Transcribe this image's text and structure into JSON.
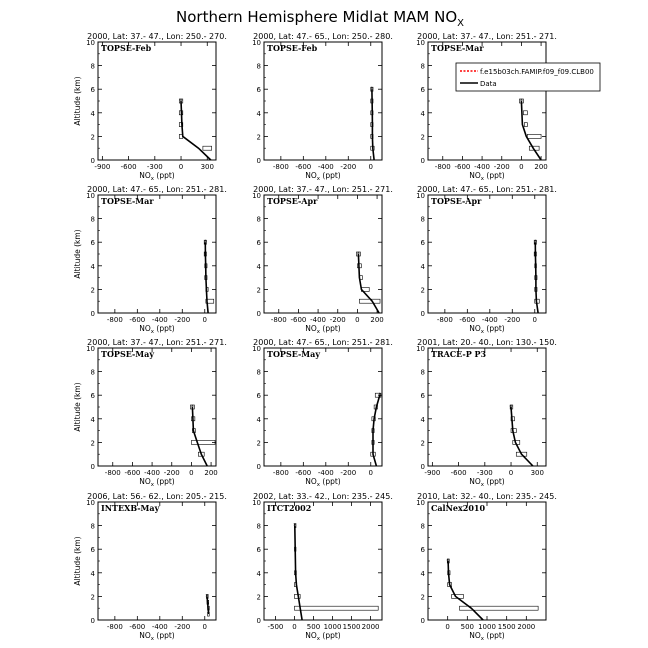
{
  "figure": {
    "title": "Northern Hemisphere Midlat MAM NO",
    "title_sub": "X",
    "xlabel_main": "NO",
    "xlabel_sub": "x",
    "xlabel_unit": "(ppt)",
    "ylabel": "Altitude (km)"
  },
  "legend": {
    "placement": "top-right",
    "entries": [
      {
        "label": "f.e15b03ch.FAMIP.f09_f09.CLB00",
        "color": "#ff0000",
        "style": "dashed"
      },
      {
        "label": "Data",
        "color": "#000000",
        "style": "solid"
      }
    ]
  },
  "chart_data": [
    {
      "type": "line",
      "header": "2000, Lat: 37.- 47., Lon: 250.- 270.",
      "campaign": "TOPSE-Feb",
      "xlim": [
        -950,
        400
      ],
      "xticks": [
        -900,
        -600,
        -300,
        0,
        300
      ],
      "ylim": [
        0,
        10
      ],
      "yticks": [
        0,
        2,
        4,
        6,
        8,
        10
      ],
      "data": [
        [
          0,
          5
        ],
        [
          5,
          4
        ],
        [
          10,
          3
        ],
        [
          20,
          2
        ],
        [
          200,
          1
        ],
        [
          340,
          0
        ]
      ],
      "boxes": [
        [
          -20,
          20,
          5
        ],
        [
          -20,
          20,
          4
        ],
        [
          -20,
          20,
          3
        ],
        [
          -20,
          20,
          2
        ],
        [
          250,
          350,
          1
        ]
      ]
    },
    {
      "type": "line",
      "header": "2000, Lat: 47.- 65., Lon: 250.- 280.",
      "campaign": "TOPSE-Feb",
      "xlim": [
        -950,
        100
      ],
      "xticks": [
        -800,
        -600,
        -400,
        -200,
        0
      ],
      "ylim": [
        0,
        10
      ],
      "yticks": [
        0,
        2,
        4,
        6,
        8,
        10
      ],
      "data": [
        [
          10,
          6
        ],
        [
          12,
          5
        ],
        [
          14,
          4
        ],
        [
          15,
          3
        ],
        [
          15,
          2
        ],
        [
          18,
          1
        ],
        [
          30,
          0
        ]
      ],
      "boxes": [
        [
          0,
          20,
          6
        ],
        [
          0,
          20,
          5
        ],
        [
          0,
          20,
          4
        ],
        [
          0,
          20,
          3
        ],
        [
          0,
          20,
          2
        ],
        [
          0,
          30,
          1
        ]
      ]
    },
    {
      "type": "line",
      "header": "2000, Lat: 37.- 47., Lon: 251.- 271.",
      "campaign": "TOPSE-Mar",
      "xlim": [
        -950,
        250
      ],
      "xticks": [
        -800,
        -600,
        -400,
        -200,
        0,
        200
      ],
      "ylim": [
        0,
        10
      ],
      "yticks": [
        0,
        2,
        4,
        6,
        8,
        10
      ],
      "data": [
        [
          0,
          5
        ],
        [
          5,
          4
        ],
        [
          10,
          3
        ],
        [
          50,
          2
        ],
        [
          120,
          1
        ],
        [
          200,
          0
        ]
      ],
      "boxes": [
        [
          -20,
          20,
          5
        ],
        [
          20,
          60,
          4
        ],
        [
          30,
          60,
          3
        ],
        [
          60,
          200,
          2
        ],
        [
          80,
          180,
          1
        ]
      ]
    },
    {
      "type": "line",
      "header": "2000, Lat: 47.- 65., Lon: 251.- 281.",
      "campaign": "TOPSE-Mar",
      "xlim": [
        -950,
        100
      ],
      "xticks": [
        -800,
        -600,
        -400,
        -200,
        0
      ],
      "ylim": [
        0,
        10
      ],
      "yticks": [
        0,
        2,
        4,
        6,
        8,
        10
      ],
      "data": [
        [
          5,
          6
        ],
        [
          6,
          5
        ],
        [
          8,
          4
        ],
        [
          10,
          3
        ],
        [
          15,
          2
        ],
        [
          20,
          1
        ],
        [
          30,
          0
        ]
      ],
      "boxes": [
        [
          -5,
          15,
          6
        ],
        [
          -5,
          15,
          5
        ],
        [
          0,
          20,
          4
        ],
        [
          0,
          20,
          3
        ],
        [
          10,
          30,
          2
        ],
        [
          10,
          80,
          1
        ]
      ]
    },
    {
      "type": "line",
      "header": "2000, Lat: 37.- 47., Lon: 251.- 271.",
      "campaign": "TOPSE-Apr",
      "xlim": [
        -950,
        250
      ],
      "xticks": [
        -800,
        -600,
        -400,
        -200,
        0,
        200
      ],
      "ylim": [
        0,
        10
      ],
      "yticks": [
        0,
        2,
        4,
        6,
        8,
        10
      ],
      "data": [
        [
          10,
          5
        ],
        [
          15,
          4
        ],
        [
          20,
          3
        ],
        [
          40,
          2
        ],
        [
          150,
          1
        ],
        [
          220,
          0
        ]
      ],
      "boxes": [
        [
          -10,
          30,
          5
        ],
        [
          0,
          40,
          4
        ],
        [
          20,
          50,
          3
        ],
        [
          40,
          120,
          2
        ],
        [
          20,
          230,
          1
        ]
      ]
    },
    {
      "type": "line",
      "header": "2000, Lat: 47.- 65., Lon: 251.- 281.",
      "campaign": "TOPSE-Apr",
      "xlim": [
        -950,
        100
      ],
      "xticks": [
        -800,
        -600,
        -400,
        -200,
        0
      ],
      "ylim": [
        0,
        10
      ],
      "yticks": [
        0,
        2,
        4,
        6,
        8,
        10
      ],
      "data": [
        [
          5,
          6
        ],
        [
          6,
          5
        ],
        [
          8,
          4
        ],
        [
          10,
          3
        ],
        [
          10,
          2
        ],
        [
          15,
          1
        ],
        [
          30,
          0
        ]
      ],
      "boxes": [
        [
          -5,
          15,
          6
        ],
        [
          -5,
          15,
          5
        ],
        [
          0,
          15,
          4
        ],
        [
          0,
          20,
          3
        ],
        [
          0,
          20,
          2
        ],
        [
          0,
          40,
          1
        ]
      ]
    },
    {
      "type": "line",
      "header": "2000, Lat: 37.- 47., Lon: 251.- 271.",
      "campaign": "TOPSE-May",
      "xlim": [
        -950,
        250
      ],
      "xticks": [
        -800,
        -600,
        -400,
        -200,
        0,
        200
      ],
      "ylim": [
        0,
        10
      ],
      "yticks": [
        0,
        2,
        4,
        6,
        8,
        10
      ],
      "data": [
        [
          10,
          5
        ],
        [
          15,
          4
        ],
        [
          20,
          3
        ],
        [
          60,
          2
        ],
        [
          100,
          1
        ],
        [
          160,
          0
        ]
      ],
      "boxes": [
        [
          -10,
          30,
          5
        ],
        [
          0,
          35,
          4
        ],
        [
          10,
          40,
          3
        ],
        [
          0,
          240,
          2
        ],
        [
          70,
          130,
          1
        ]
      ]
    },
    {
      "type": "line",
      "header": "2000, Lat: 47.- 65., Lon: 251.- 281.",
      "campaign": "TOPSE-May",
      "xlim": [
        -950,
        100
      ],
      "xticks": [
        -800,
        -600,
        -400,
        -200,
        0
      ],
      "ylim": [
        0,
        10
      ],
      "yticks": [
        0,
        2,
        4,
        6,
        8,
        10
      ],
      "data": [
        [
          80,
          6
        ],
        [
          50,
          5
        ],
        [
          30,
          4
        ],
        [
          20,
          3
        ],
        [
          20,
          2
        ],
        [
          20,
          1
        ],
        [
          50,
          0
        ]
      ],
      "boxes": [
        [
          40,
          90,
          6
        ],
        [
          30,
          60,
          5
        ],
        [
          10,
          40,
          4
        ],
        [
          10,
          30,
          3
        ],
        [
          10,
          30,
          2
        ],
        [
          0,
          40,
          1
        ]
      ]
    },
    {
      "type": "line",
      "header": "2001, Lat: 20.- 40., Lon: 130.- 150.",
      "campaign": "TRACE-P P3",
      "xlim": [
        -950,
        400
      ],
      "xticks": [
        -900,
        -600,
        -300,
        0,
        300
      ],
      "ylim": [
        0,
        10
      ],
      "yticks": [
        0,
        2,
        4,
        6,
        8,
        10
      ],
      "data": [
        [
          0,
          5
        ],
        [
          10,
          4
        ],
        [
          20,
          3
        ],
        [
          50,
          2
        ],
        [
          120,
          1
        ],
        [
          250,
          0
        ]
      ],
      "boxes": [
        [
          -10,
          20,
          5
        ],
        [
          0,
          40,
          4
        ],
        [
          0,
          60,
          3
        ],
        [
          20,
          100,
          2
        ],
        [
          60,
          180,
          1
        ]
      ]
    },
    {
      "type": "line",
      "header": "2006, Lat: 56.- 62., Lon: 205.- 215.",
      "campaign": "INTEXB-May",
      "xlim": [
        -950,
        100
      ],
      "xticks": [
        -800,
        -600,
        -400,
        -200,
        0
      ],
      "ylim": [
        0,
        10
      ],
      "yticks": [
        0,
        2,
        4,
        6,
        8,
        10
      ],
      "data": [
        [
          20,
          2
        ],
        [
          25,
          1.5
        ],
        [
          30,
          1
        ],
        [
          35,
          0.5
        ]
      ],
      "boxes": [
        [
          15,
          30,
          2
        ],
        [
          20,
          35,
          1.5
        ],
        [
          25,
          40,
          1
        ],
        [
          25,
          40,
          0.5
        ]
      ]
    },
    {
      "type": "line",
      "header": "2002, Lat: 33.- 42., Lon: 235.- 245.",
      "campaign": "ITCT2002",
      "xlim": [
        -800,
        2300
      ],
      "xticks": [
        -500,
        0,
        500,
        1000,
        1500,
        2000
      ],
      "ylim": [
        0,
        10
      ],
      "yticks": [
        0,
        2,
        4,
        6,
        8,
        10
      ],
      "data": [
        [
          10,
          8
        ],
        [
          20,
          6
        ],
        [
          30,
          4
        ],
        [
          50,
          3
        ],
        [
          100,
          2
        ],
        [
          150,
          1
        ],
        [
          200,
          0
        ]
      ],
      "boxes": [
        [
          0,
          30,
          8
        ],
        [
          0,
          40,
          6
        ],
        [
          0,
          50,
          4
        ],
        [
          0,
          60,
          3
        ],
        [
          0,
          150,
          2
        ],
        [
          0,
          2200,
          1
        ]
      ]
    },
    {
      "type": "line",
      "header": "2010, Lat: 32.- 40., Lon: 235.- 245.",
      "campaign": "CalNex2010",
      "xlim": [
        -500,
        2500
      ],
      "xticks": [
        0,
        500,
        1000,
        1500,
        2000
      ],
      "ylim": [
        0,
        10
      ],
      "yticks": [
        0,
        2,
        4,
        6,
        8,
        10
      ],
      "data": [
        [
          10,
          5
        ],
        [
          20,
          4
        ],
        [
          50,
          3
        ],
        [
          200,
          2
        ],
        [
          600,
          1
        ],
        [
          900,
          0
        ]
      ],
      "boxes": [
        [
          -10,
          40,
          5
        ],
        [
          0,
          60,
          4
        ],
        [
          0,
          100,
          3
        ],
        [
          100,
          400,
          2
        ],
        [
          300,
          2300,
          1
        ]
      ]
    }
  ]
}
